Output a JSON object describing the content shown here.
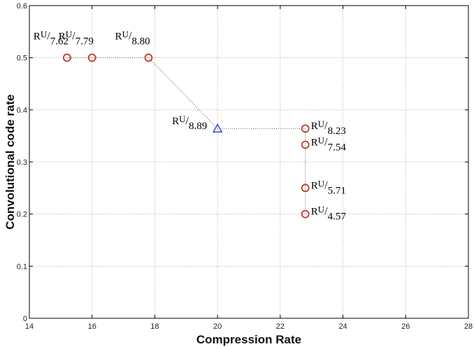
{
  "chart_data": {
    "type": "scatter",
    "xlabel": "Compression Rate",
    "ylabel": "Convolutional code rate",
    "xlim": [
      14,
      28
    ],
    "ylim": [
      0,
      0.6
    ],
    "x_ticks": [
      "14",
      "16",
      "18",
      "20",
      "22",
      "24",
      "26",
      "28"
    ],
    "y_ticks": [
      "0",
      "0.1",
      "0.2",
      "0.3",
      "0.4",
      "0.5",
      "0.6"
    ],
    "grid": true,
    "series": [
      {
        "marker": "circle",
        "color": "#c0392b",
        "points": [
          {
            "x": 15.2,
            "y": 0.5,
            "label": "7.62"
          },
          {
            "x": 16.0,
            "y": 0.5,
            "label": "7.79"
          },
          {
            "x": 17.8,
            "y": 0.5,
            "label": "8.80"
          },
          {
            "x": 22.8,
            "y": 0.364,
            "label": "8.23"
          },
          {
            "x": 22.8,
            "y": 0.333,
            "label": "7.54"
          },
          {
            "x": 22.8,
            "y": 0.25,
            "label": "5.71"
          },
          {
            "x": 22.8,
            "y": 0.2,
            "label": "4.57"
          }
        ]
      },
      {
        "marker": "triangle",
        "color": "#1f3fd1",
        "points": [
          {
            "x": 20.0,
            "y": 0.364,
            "label": "8.89"
          }
        ]
      }
    ],
    "connections": [
      {
        "from": [
          15.2,
          0.5
        ],
        "to": [
          17.8,
          0.5
        ]
      },
      {
        "from": [
          17.8,
          0.5
        ],
        "to": [
          20.0,
          0.364
        ]
      },
      {
        "from": [
          20.0,
          0.364
        ],
        "to": [
          22.8,
          0.364
        ]
      },
      {
        "from": [
          22.8,
          0.364
        ],
        "to": [
          22.8,
          0.2
        ]
      }
    ],
    "label_prefix_main": "R",
    "label_prefix_sub": "U",
    "label_separator": "/"
  }
}
